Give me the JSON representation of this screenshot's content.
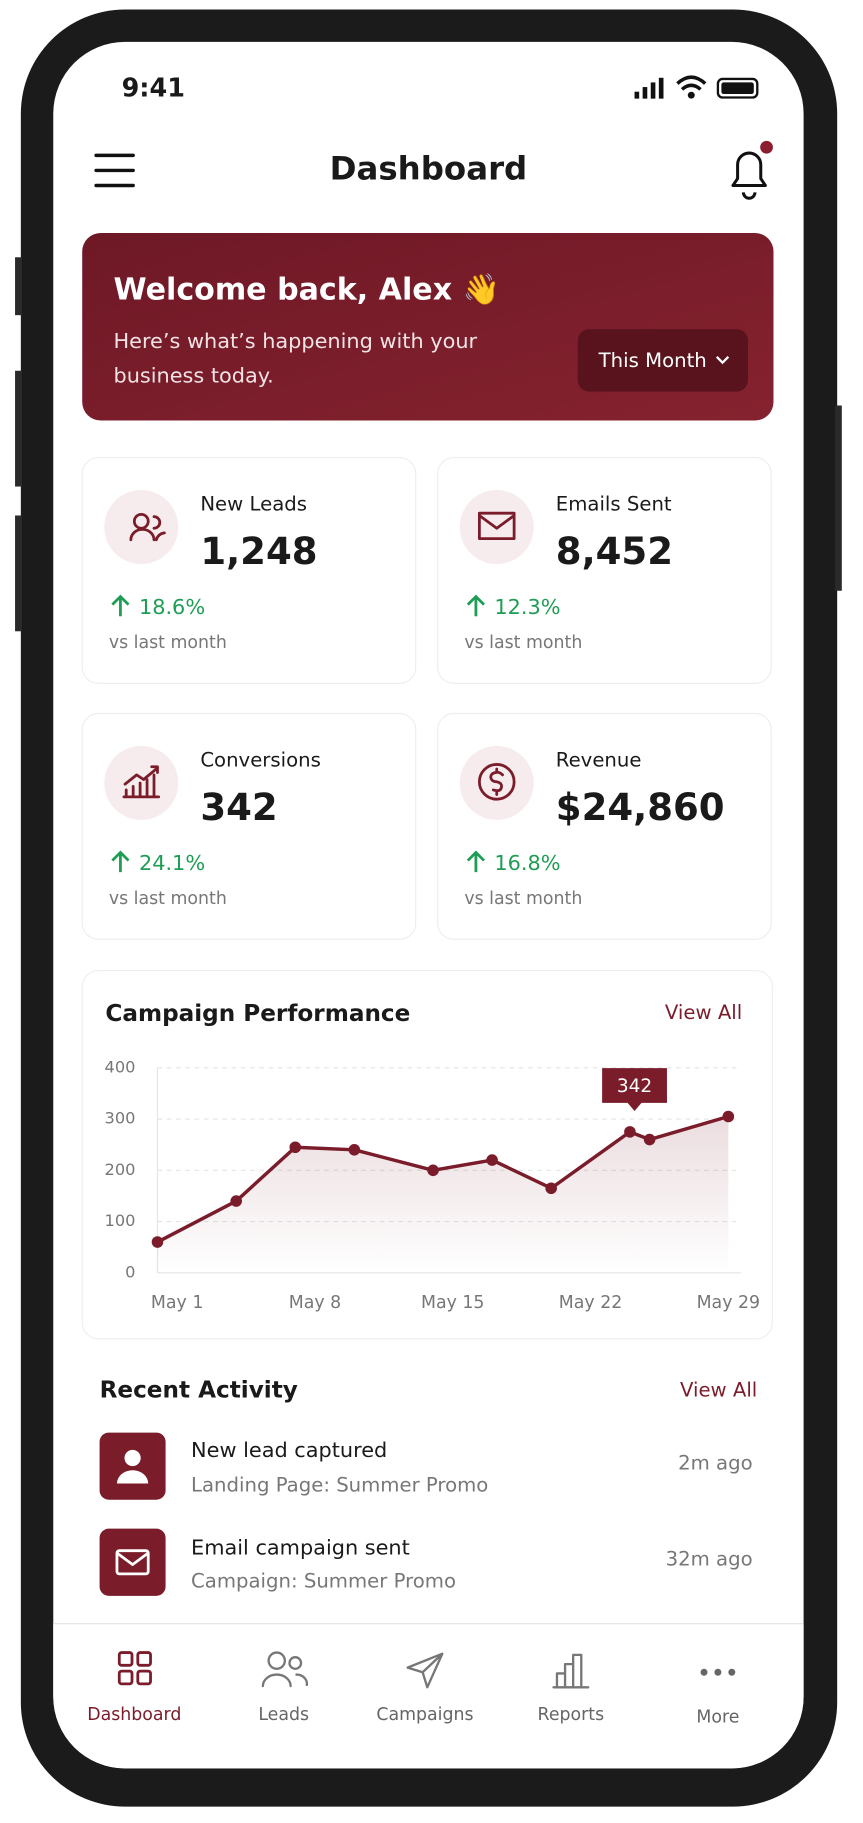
{
  "status_bar": {
    "time": "9:41"
  },
  "header": {
    "title": "Dashboard"
  },
  "welcome": {
    "title": "Welcome back, Alex 👋",
    "subtitle_lines": [
      "Here’s what’s happening with your",
      "business today."
    ],
    "period": "This Month"
  },
  "stats": [
    {
      "label": "New Leads",
      "value": "1,248",
      "change": "18.6%",
      "note": "vs last month"
    },
    {
      "label": "Emails Sent",
      "value": "8,452",
      "change": "12.3%",
      "note": "vs last month"
    },
    {
      "label": "Conversions",
      "value": "342",
      "change": "24.1%",
      "note": "vs last month"
    },
    {
      "label": "Revenue",
      "value": "$24,860",
      "change": "16.8%",
      "note": "vs last month"
    }
  ],
  "campaign": {
    "title": "Campaign Performance",
    "view_all": "View All"
  },
  "chart_data": {
    "type": "line",
    "color": "#7a1c2a",
    "x": [
      1,
      5,
      8,
      11,
      15,
      18,
      21,
      25,
      26,
      30
    ],
    "values": [
      60,
      140,
      245,
      240,
      200,
      220,
      165,
      275,
      260,
      305
    ],
    "xlim": [
      1,
      29
    ],
    "xticks": [
      {
        "value": 1,
        "label": "May 1"
      },
      {
        "value": 8,
        "label": "May 8"
      },
      {
        "value": 15,
        "label": "May 15"
      },
      {
        "value": 22,
        "label": "May 22"
      },
      {
        "value": 29,
        "label": "May 29"
      }
    ],
    "ylim": [
      0,
      400
    ],
    "yticks": [
      0,
      100,
      200,
      300,
      400
    ],
    "grid": true,
    "annotation": "342"
  },
  "activity": {
    "title": "Recent Activity",
    "view_all": "View All",
    "items": [
      {
        "title": "New lead captured",
        "subtitle": "Landing Page: Summer Promo",
        "time": "2m ago"
      },
      {
        "title": "Email campaign sent",
        "subtitle": "Campaign: Summer Promo",
        "time": "32m ago"
      }
    ]
  },
  "nav": [
    "Dashboard",
    "Leads",
    "Campaigns",
    "Reports",
    "More"
  ]
}
